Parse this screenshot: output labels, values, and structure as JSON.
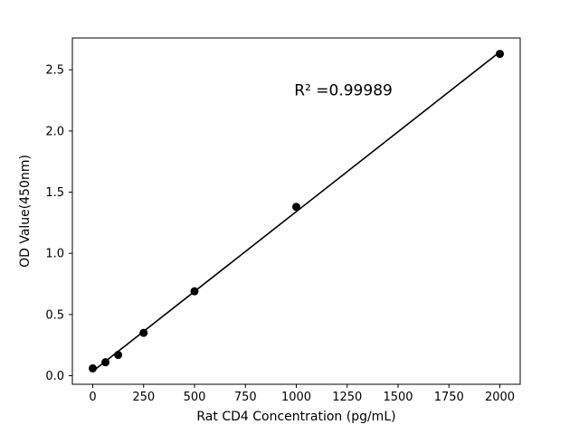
{
  "chart_data": {
    "type": "scatter",
    "title": "",
    "xlabel": "Rat CD4 Concentration (pg/mL)",
    "ylabel": "OD Value(450nm)",
    "x": [
      0,
      62.5,
      125,
      250,
      500,
      1000,
      2000
    ],
    "y": [
      0.06,
      0.11,
      0.17,
      0.35,
      0.69,
      1.38,
      2.63
    ],
    "xlim": [
      -100,
      2100
    ],
    "ylim": [
      -0.07,
      2.76
    ],
    "xticks": [
      0,
      250,
      500,
      750,
      1000,
      1250,
      1500,
      1750,
      2000
    ],
    "xtick_labels": [
      "0",
      "250",
      "500",
      "750",
      "1000",
      "1250",
      "1500",
      "1750",
      "2000"
    ],
    "yticks": [
      0.0,
      0.5,
      1.0,
      1.5,
      2.0,
      2.5
    ],
    "ytick_labels": [
      "0.0",
      "0.5",
      "1.0",
      "1.5",
      "2.0",
      "2.5"
    ],
    "annotation": {
      "text": "R² =0.99989",
      "x": 990,
      "y": 2.29
    },
    "trendline": true,
    "legend": "none",
    "grid": false,
    "marker_color": "#000000",
    "line_color": "#000000",
    "axis_color": "#000000",
    "background": "#ffffff"
  }
}
